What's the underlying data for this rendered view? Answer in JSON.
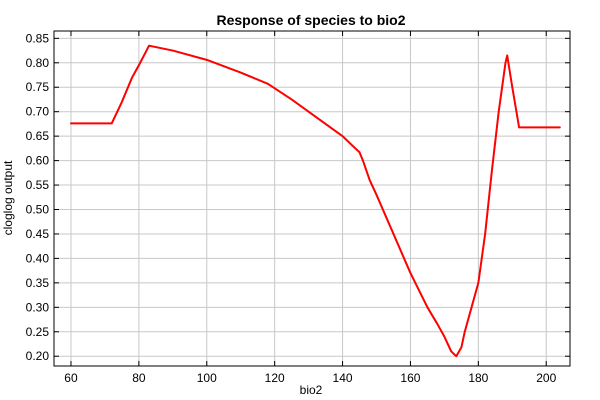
{
  "chart_data": {
    "type": "line",
    "title": "Response of species to bio2",
    "xlabel": "bio2",
    "ylabel": "cloglog output",
    "xlim": [
      55,
      207
    ],
    "ylim": [
      0.18,
      0.865
    ],
    "grid": true,
    "x_ticks": [
      60,
      80,
      100,
      120,
      140,
      160,
      180,
      200
    ],
    "y_ticks": [
      0.2,
      0.25,
      0.3,
      0.35,
      0.4,
      0.45,
      0.5,
      0.55,
      0.6,
      0.65,
      0.7,
      0.75,
      0.8,
      0.85
    ],
    "series": [
      {
        "color": "#ff0000",
        "x": [
          60,
          72,
          75,
          78,
          80,
          83,
          90,
          100,
          110,
          118,
          125,
          130,
          135,
          140,
          143,
          145,
          146,
          148,
          150,
          155,
          160,
          165,
          168,
          170,
          172,
          173.5,
          175,
          176,
          178,
          180,
          182,
          184,
          186,
          188,
          188.5,
          190,
          192,
          204
        ],
        "y": [
          0.676,
          0.676,
          0.72,
          0.77,
          0.795,
          0.835,
          0.825,
          0.806,
          0.78,
          0.757,
          0.725,
          0.7,
          0.675,
          0.65,
          0.63,
          0.617,
          0.6,
          0.56,
          0.53,
          0.45,
          0.37,
          0.3,
          0.265,
          0.24,
          0.21,
          0.2,
          0.218,
          0.25,
          0.3,
          0.35,
          0.45,
          0.58,
          0.7,
          0.8,
          0.815,
          0.75,
          0.668,
          0.668
        ]
      }
    ]
  }
}
